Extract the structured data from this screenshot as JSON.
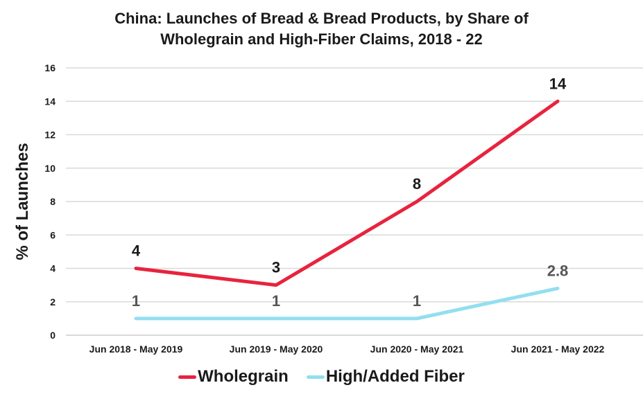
{
  "chart_data": {
    "type": "line",
    "title": [
      "China: Launches of Bread & Bread Products, by Share of",
      "Wholegrain and High-Fiber Claims, 2018 - 22"
    ],
    "xlabel": "",
    "ylabel": "% of Launches",
    "categories": [
      "Jun 2018 - May 2019",
      "Jun 2019 - May 2020",
      "Jun 2020 - May 2021",
      "Jun 2021 - May 2022"
    ],
    "ylim": [
      0,
      16
    ],
    "yticks": [
      0,
      2,
      4,
      6,
      8,
      10,
      12,
      14,
      16
    ],
    "grid": true,
    "legend_position": "bottom-center",
    "series": [
      {
        "name": "Wholegrain",
        "color": "#e8233e",
        "label_color": "#1a1a1a",
        "values": [
          4,
          3,
          8,
          14
        ],
        "labels": [
          "4",
          "3",
          "8",
          "14"
        ]
      },
      {
        "name": "High/Added Fiber",
        "color": "#92dff0",
        "label_color": "#555555",
        "values": [
          1,
          1,
          1,
          2.8
        ],
        "labels": [
          "1",
          "1",
          "1",
          "2.8"
        ]
      }
    ]
  }
}
